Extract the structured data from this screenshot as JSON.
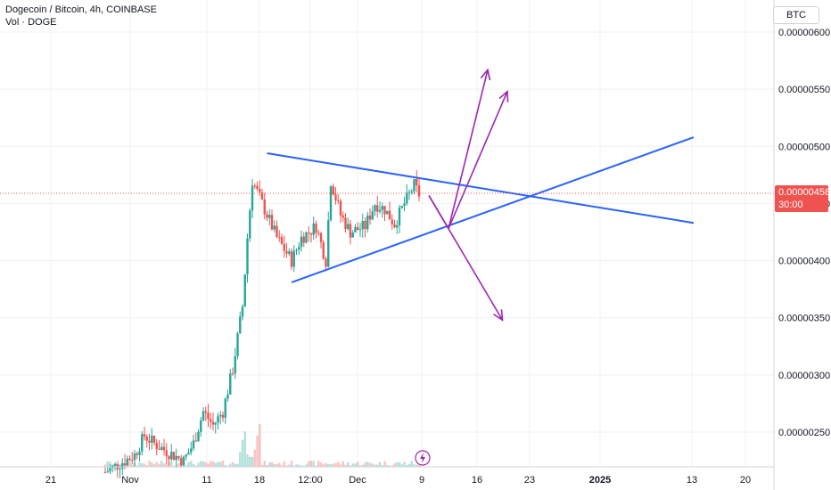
{
  "header": {
    "title": "Dogecoin / Bitcoin, 4h, COINBASE",
    "subtitle": "Vol · DOGE"
  },
  "currency_label": "BTC",
  "last_price": {
    "value": "0.00000458",
    "countdown": "30:00"
  },
  "colors": {
    "up": "#26a69a",
    "down": "#ef5350",
    "trendline": "#2962ff",
    "projection": "#9c27b0",
    "grid": "#eef0f3"
  },
  "chart_data": {
    "type": "candlestick",
    "ylim": [
      2e-06,
      6.4e-06
    ],
    "yticks": [
      "0.00000600",
      "0.00000550",
      "0.00000500",
      "0.00000450",
      "0.00000400",
      "0.00000350",
      "0.00000300",
      "0.00000250"
    ],
    "ytick_values": [
      6e-06,
      5.5e-06,
      5e-06,
      4.5e-06,
      4e-06,
      3.5e-06,
      3e-06,
      2.5e-06
    ],
    "xticks": [
      "21",
      "Nov",
      "11",
      "18",
      "12:00",
      "Dec",
      "9",
      "16",
      "23",
      "2025",
      "13",
      "20"
    ],
    "xtick_bold": [
      "2025"
    ],
    "price_path": [
      {
        "t": 0,
        "p": 2.15e-06
      },
      {
        "t": 6,
        "p": 2.3e-06
      },
      {
        "t": 8,
        "p": 2.47e-06
      },
      {
        "t": 10,
        "p": 2.4e-06
      },
      {
        "t": 13,
        "p": 2.32e-06
      },
      {
        "t": 16,
        "p": 2.25e-06
      },
      {
        "t": 18,
        "p": 2.4e-06
      },
      {
        "t": 20,
        "p": 2.68e-06
      },
      {
        "t": 22,
        "p": 2.56e-06
      },
      {
        "t": 24,
        "p": 2.68e-06
      },
      {
        "t": 26,
        "p": 3.05e-06
      },
      {
        "t": 28,
        "p": 3.6e-06
      },
      {
        "t": 29,
        "p": 4.2e-06
      },
      {
        "t": 30,
        "p": 4.7e-06
      },
      {
        "t": 32,
        "p": 4.5e-06
      },
      {
        "t": 35,
        "p": 4.2e-06
      },
      {
        "t": 38,
        "p": 4e-06
      },
      {
        "t": 40,
        "p": 4.2e-06
      },
      {
        "t": 43,
        "p": 4.3e-06
      },
      {
        "t": 45,
        "p": 4e-06
      },
      {
        "t": 46,
        "p": 4.7e-06
      },
      {
        "t": 48,
        "p": 4.4e-06
      },
      {
        "t": 50,
        "p": 4.25e-06
      },
      {
        "t": 53,
        "p": 4.3e-06
      },
      {
        "t": 55,
        "p": 4.5e-06
      },
      {
        "t": 57,
        "p": 4.45e-06
      },
      {
        "t": 59,
        "p": 4.32e-06
      },
      {
        "t": 61,
        "p": 4.5e-06
      },
      {
        "t": 63,
        "p": 4.66e-06
      },
      {
        "t": 64,
        "p": 4.58e-06
      }
    ],
    "trendlines": [
      {
        "name": "upper",
        "from": [
          33,
          4.94e-06
        ],
        "to": [
          120,
          4.33e-06
        ]
      },
      {
        "name": "lower",
        "from": [
          38,
          3.81e-06
        ],
        "to": [
          120,
          5.08e-06
        ]
      }
    ],
    "projections": [
      {
        "from": [
          66,
          4.57e-06
        ],
        "via": [
          70,
          4.28e-06
        ],
        "to": [
          78,
          5.67e-06
        ]
      },
      {
        "from": [
          70,
          4.28e-06
        ],
        "to": [
          82,
          5.48e-06
        ]
      },
      {
        "from": [
          66,
          4.57e-06
        ],
        "to": [
          81,
          3.48e-06
        ]
      }
    ]
  }
}
